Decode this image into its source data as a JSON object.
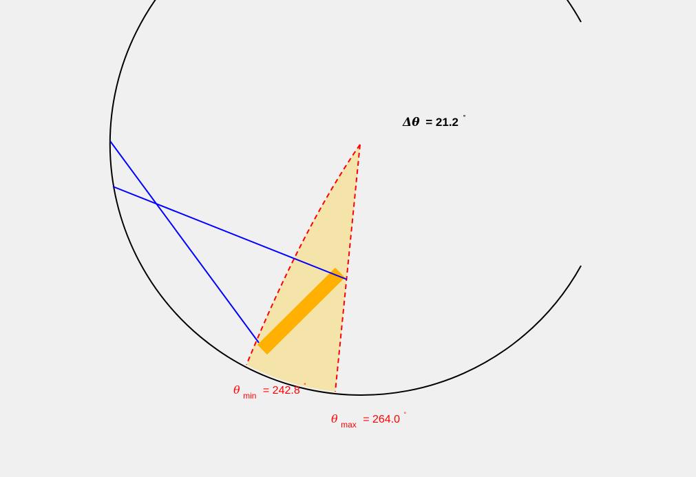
{
  "diagram": {
    "delta_label": {
      "symbol": "Δθ",
      "text": "= 21.2",
      "unit": "°"
    },
    "theta_min_label": {
      "symbol": "θ",
      "subscript": "min",
      "text": "= 242.8",
      "unit": "°"
    },
    "theta_max_label": {
      "symbol": "θ",
      "subscript": "max",
      "text": "= 264.0",
      "unit": "°"
    },
    "colors": {
      "background": "#f0f0f0",
      "circle": "#000000",
      "rays": "#0000ff",
      "wedge_fill": "#f5e4aa",
      "wedge_edges": "#ff0000",
      "detector": "#ffb000",
      "labels_accent": "#ff0000"
    }
  }
}
